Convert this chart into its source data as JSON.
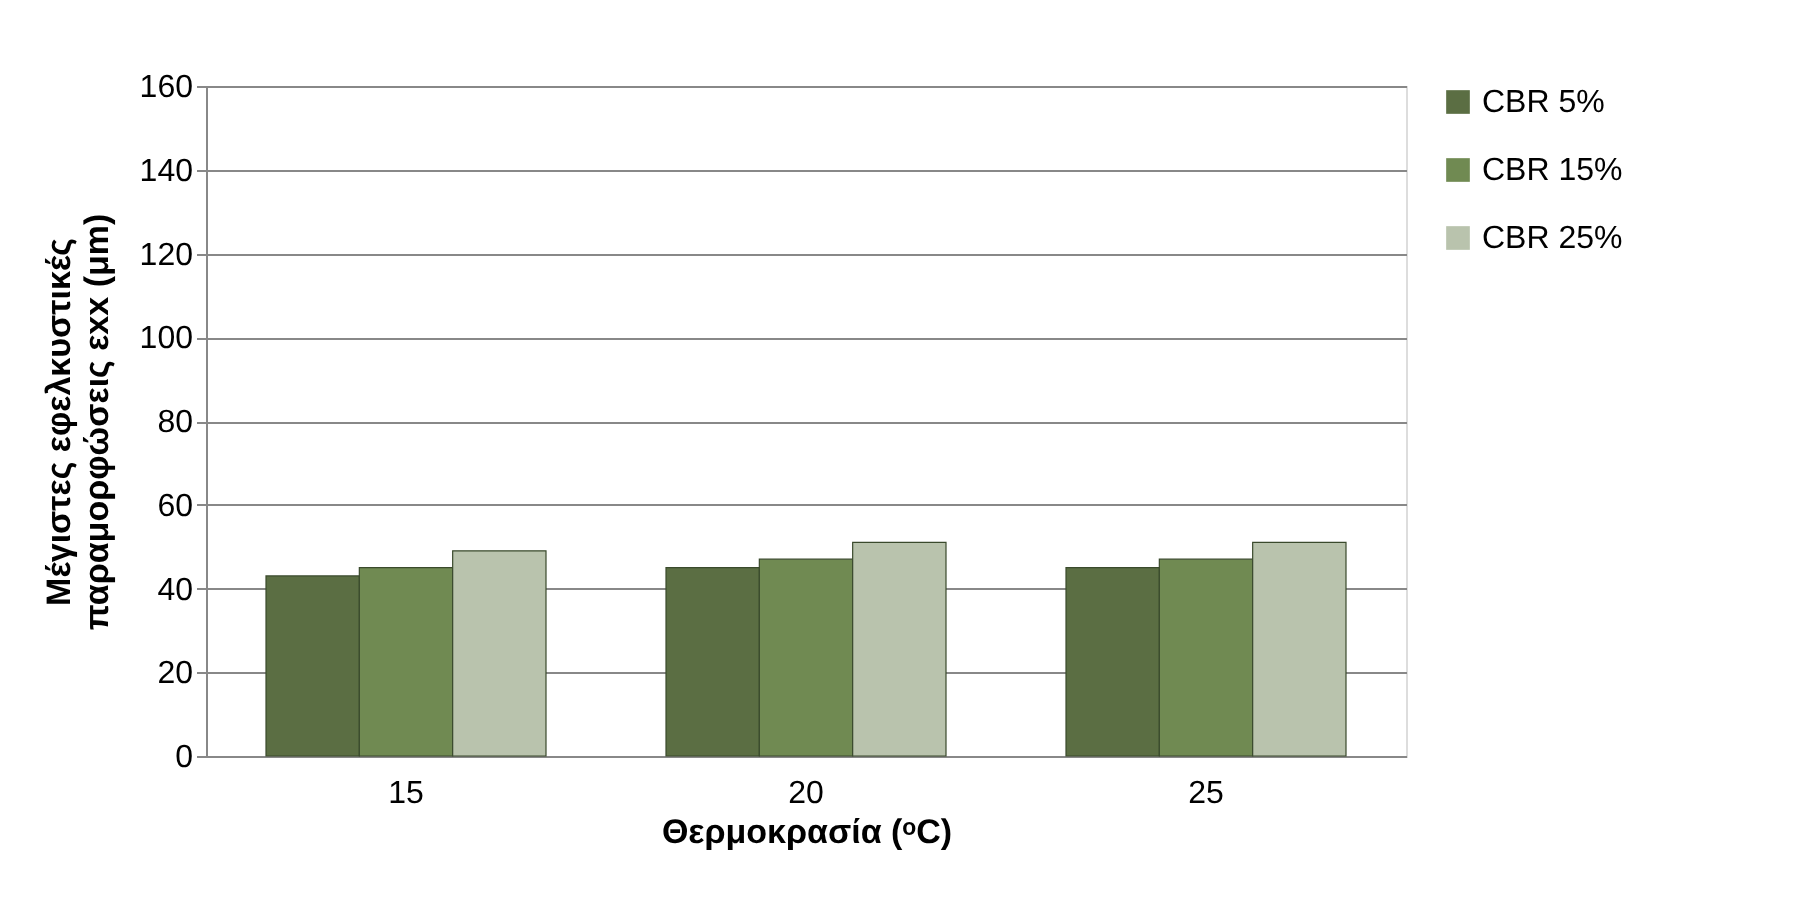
{
  "chart_data": {
    "type": "bar",
    "categories": [
      "15",
      "20",
      "25"
    ],
    "xlabel": "Θερμοκρασία (ᵒC)",
    "ylabel": "Μέγιστες εφελκυστικές\nπαραμορφώσεις εxx (μm)",
    "series": [
      {
        "name": "CBR 5%",
        "color": "#5b6e43",
        "values": [
          43,
          45,
          45
        ]
      },
      {
        "name": "CBR 15%",
        "color": "#708a52",
        "values": [
          45,
          47,
          47
        ]
      },
      {
        "name": "CBR 25%",
        "color": "#b9c3ad",
        "values": [
          49,
          51,
          51
        ]
      }
    ],
    "ylim": [
      0,
      160
    ],
    "yticks": [
      0,
      20,
      40,
      60,
      80,
      100,
      120,
      140,
      160
    ],
    "grid": "y",
    "legend": "right"
  }
}
